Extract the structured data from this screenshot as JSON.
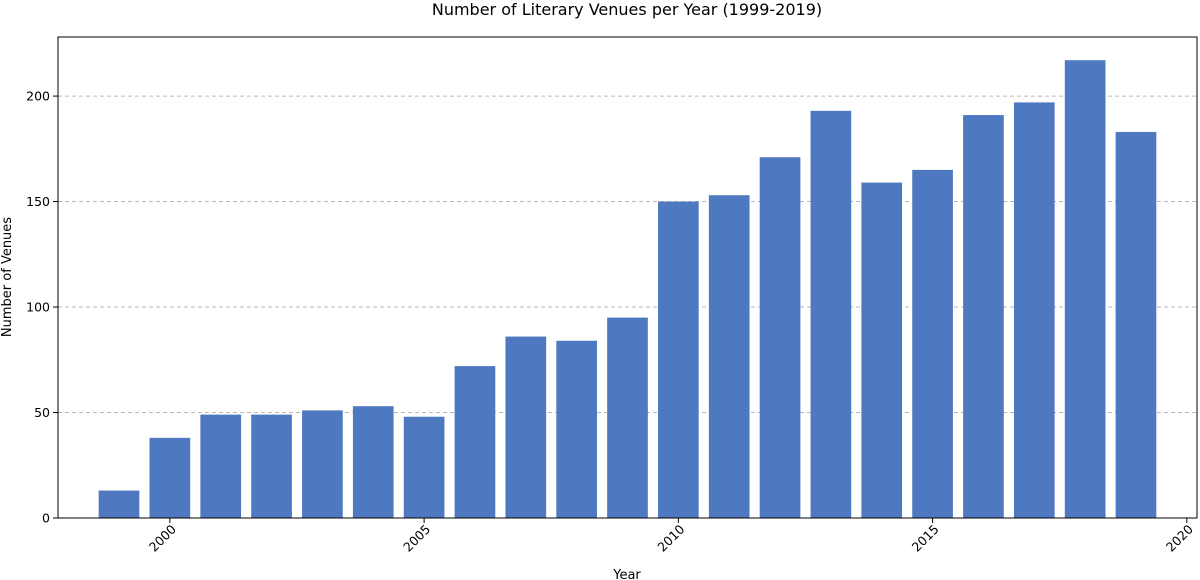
{
  "chart_data": {
    "type": "bar",
    "title": "Number of Literary Venues per Year (1999-2019)",
    "xlabel": "Year",
    "ylabel": "Number of Venues",
    "x": [
      1999,
      2000,
      2001,
      2002,
      2003,
      2004,
      2005,
      2006,
      2007,
      2008,
      2009,
      2010,
      2011,
      2012,
      2013,
      2014,
      2015,
      2016,
      2017,
      2018,
      2019
    ],
    "values": [
      13,
      38,
      49,
      49,
      51,
      53,
      48,
      72,
      86,
      84,
      95,
      150,
      153,
      171,
      193,
      159,
      165,
      191,
      197,
      217,
      183
    ],
    "xlim": [
      1997.8,
      2020.2
    ],
    "ylim": [
      0,
      228
    ],
    "xticks": [
      2000,
      2005,
      2010,
      2015,
      2020
    ],
    "xtick_labels": [
      "2000",
      "2005",
      "2010",
      "2015",
      "2020"
    ],
    "yticks": [
      0,
      50,
      100,
      150,
      200
    ],
    "ytick_labels": [
      "0",
      "50",
      "100",
      "150",
      "200"
    ],
    "xtick_rotation": 45,
    "grid": "y-dashed",
    "bar_color": "#4e78bf"
  }
}
